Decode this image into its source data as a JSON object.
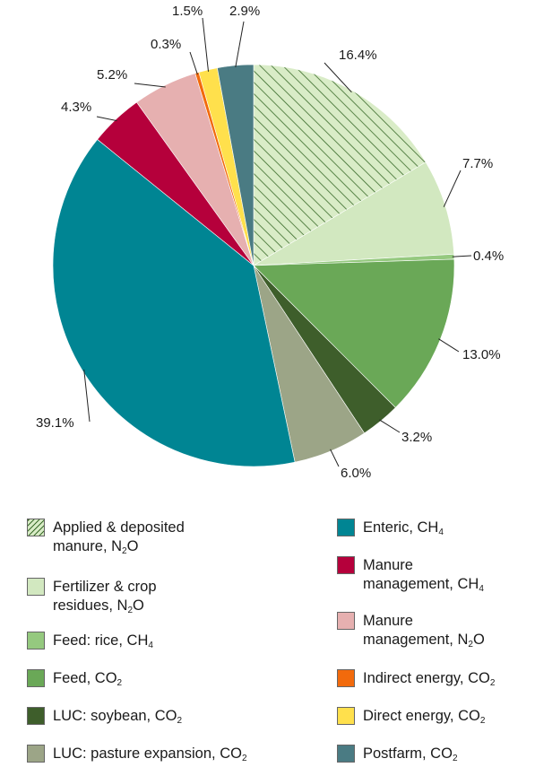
{
  "chart_data": {
    "type": "pie",
    "start_angle_deg": 0,
    "direction": "clockwise",
    "hatched_segments": [
      "Applied & deposited manure, N2O"
    ],
    "segments": [
      {
        "name": "Applied & deposited manure, N2O",
        "value": 16.4,
        "label": "16.4%",
        "color": "#d9ecc7",
        "hatch": true
      },
      {
        "name": "Fertilizer & crop residues, N2O",
        "value": 7.7,
        "label": "7.7%",
        "color": "#d2e8c0"
      },
      {
        "name": "Feed: rice, CH4",
        "value": 0.4,
        "label": "0.4%",
        "color": "#95c97f"
      },
      {
        "name": "Feed, CO2",
        "value": 13.0,
        "label": "13.0%",
        "color": "#6aa857"
      },
      {
        "name": "LUC: soybean, CO2",
        "value": 3.2,
        "label": "3.2%",
        "color": "#3e5e2b"
      },
      {
        "name": "LUC: pasture expansion, CO2",
        "value": 6.0,
        "label": "6.0%",
        "color": "#9ca587"
      },
      {
        "name": "Enteric, CH4",
        "value": 39.1,
        "label": "39.1%",
        "color": "#008593"
      },
      {
        "name": "Manure management, CH4",
        "value": 4.3,
        "label": "4.3%",
        "color": "#b5003b"
      },
      {
        "name": "Manure management, N2O",
        "value": 5.2,
        "label": "5.2%",
        "color": "#e6b0b0"
      },
      {
        "name": "Indirect energy, CO2",
        "value": 0.3,
        "label": "0.3%",
        "color": "#f26a0c"
      },
      {
        "name": "Direct energy, CO2",
        "value": 1.5,
        "label": "1.5%",
        "color": "#ffe04c"
      },
      {
        "name": "Postfarm, CO2",
        "value": 2.9,
        "label": "2.9%",
        "color": "#4a7b83"
      }
    ],
    "legend": {
      "placement": "bottom",
      "left_column": [
        {
          "segment": 0,
          "lines": [
            [
              "Applied & deposited"
            ],
            [
              "manure, N",
              {
                "sub": "2"
              },
              "O"
            ]
          ]
        },
        {
          "segment": 1,
          "lines": [
            [
              "Fertilizer & crop"
            ],
            [
              "residues, N",
              {
                "sub": "2"
              },
              "O"
            ]
          ]
        },
        {
          "segment": 2,
          "lines": [
            [
              "Feed: rice, CH",
              {
                "sub": "4"
              }
            ]
          ]
        },
        {
          "segment": 3,
          "lines": [
            [
              "Feed, CO",
              {
                "sub": "2"
              }
            ]
          ]
        },
        {
          "segment": 4,
          "lines": [
            [
              "LUC: soybean, CO",
              {
                "sub": "2"
              }
            ]
          ]
        },
        {
          "segment": 5,
          "lines": [
            [
              "LUC: pasture expansion, CO",
              {
                "sub": "2"
              }
            ]
          ]
        }
      ],
      "right_column": [
        {
          "segment": 6,
          "lines": [
            [
              "Enteric, CH",
              {
                "sub": "4"
              }
            ]
          ]
        },
        {
          "segment": 7,
          "lines": [
            [
              "Manure"
            ],
            [
              "management, CH",
              {
                "sub": "4"
              }
            ]
          ]
        },
        {
          "segment": 8,
          "lines": [
            [
              "Manure"
            ],
            [
              "management, N",
              {
                "sub": "2"
              },
              "O"
            ]
          ]
        },
        {
          "segment": 9,
          "lines": [
            [
              "Indirect energy, CO",
              {
                "sub": "2"
              }
            ]
          ]
        },
        {
          "segment": 10,
          "lines": [
            [
              "Direct energy, CO",
              {
                "sub": "2"
              }
            ]
          ]
        },
        {
          "segment": 11,
          "lines": [
            [
              "Postfarm, CO",
              {
                "sub": "2"
              }
            ]
          ]
        }
      ]
    }
  }
}
